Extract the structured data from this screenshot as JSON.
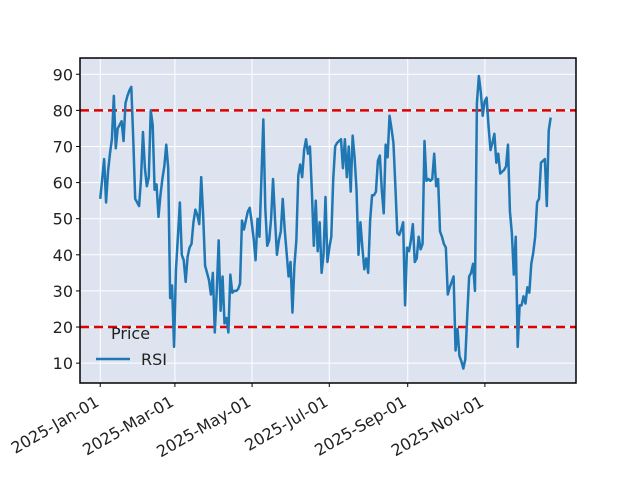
{
  "chart_data": {
    "type": "line",
    "title": "",
    "xlabel": "",
    "ylabel": "",
    "x_start": "2025-01-01",
    "x_end": "2025-12-23",
    "xlim": [
      "2024-12-16",
      "2026-01-12"
    ],
    "ylim": [
      4.5,
      94.5
    ],
    "y_ticks": [
      10,
      20,
      30,
      40,
      50,
      60,
      70,
      80,
      90
    ],
    "x_ticks": [
      {
        "date": "2025-01-01",
        "label": "2025-Jan-01"
      },
      {
        "date": "2025-03-01",
        "label": "2025-Mar-01"
      },
      {
        "date": "2025-05-01",
        "label": "2025-May-01"
      },
      {
        "date": "2025-07-01",
        "label": "2025-Jul-01"
      },
      {
        "date": "2025-09-01",
        "label": "2025-Sep-01"
      },
      {
        "date": "2025-11-01",
        "label": "2025-Nov-01"
      }
    ],
    "grid": true,
    "legend": {
      "title": "Price",
      "placement": "lower-left"
    },
    "series": [
      {
        "name": "RSI",
        "color": "#1f77b4",
        "values": [
          55.5,
          61,
          66.5,
          54.5,
          63,
          68,
          72,
          84,
          69.5,
          75,
          76,
          77,
          71.5,
          82,
          84,
          85.5,
          86.5,
          72,
          55.5,
          54.5,
          53.5,
          61,
          74,
          64,
          59,
          61.5,
          80,
          76,
          58,
          59.5,
          50.5,
          56.5,
          61,
          64.5,
          70.5,
          64,
          28,
          31.5,
          14.5,
          36,
          45,
          54.5,
          40,
          38.5,
          32.5,
          39.5,
          42,
          43,
          49,
          52.5,
          51,
          48.5,
          61.5,
          51,
          37,
          35,
          33,
          29,
          35,
          18.5,
          30,
          44,
          24.5,
          34,
          21,
          22.5,
          18.5,
          34.5,
          29.5,
          30,
          30,
          30.5,
          32,
          49.5,
          47,
          49.5,
          52,
          53,
          49,
          44.5,
          38.5,
          50,
          45,
          61,
          77.5,
          53,
          42.5,
          44,
          50,
          61,
          50,
          40,
          44,
          46.5,
          55.5,
          47,
          40.5,
          34,
          38,
          24,
          37,
          44,
          62,
          65,
          61.5,
          69,
          72,
          68,
          70,
          57.5,
          42.5,
          55,
          41,
          49,
          35,
          40,
          56,
          38,
          42,
          45,
          61,
          70,
          71,
          71.5,
          72,
          64,
          72,
          61.5,
          70,
          57.5,
          73,
          67,
          58,
          40,
          49,
          42,
          36,
          39,
          35,
          49.5,
          56.5,
          56.5,
          57.5,
          66,
          67.5,
          58,
          51.5,
          70.5,
          67,
          78.5,
          75,
          71,
          59,
          46,
          45.5,
          47,
          49,
          26,
          42,
          41,
          44,
          48.5,
          38,
          39,
          45,
          41.5,
          43,
          71.5,
          60.5,
          61,
          60.5,
          61,
          68,
          59,
          61,
          46.5,
          45,
          43,
          42,
          29,
          31,
          32.5,
          34,
          13.5,
          19.5,
          12,
          10.5,
          8.5,
          11,
          23,
          34,
          35,
          37.5,
          30,
          82,
          89.5,
          85,
          78.5,
          82.5,
          83.5,
          75.5,
          69,
          71,
          73.5,
          65.5,
          68,
          62.5,
          63,
          63.5,
          64.5,
          70.5,
          52,
          46,
          34.5,
          45,
          14.5,
          26,
          26,
          28.5,
          26.5,
          31,
          29.5,
          37.5,
          40.5,
          45,
          54.5,
          55.5,
          65.5,
          66,
          66.5,
          53.5,
          74.5,
          78
        ]
      }
    ],
    "reference_lines": [
      {
        "y": 80,
        "color": "#e00000",
        "style": "dashed"
      },
      {
        "y": 20,
        "color": "#e00000",
        "style": "dashed"
      }
    ],
    "colors": {
      "plot_background": "#dde3ef",
      "grid": "#ffffff",
      "frame": "#000000"
    }
  }
}
